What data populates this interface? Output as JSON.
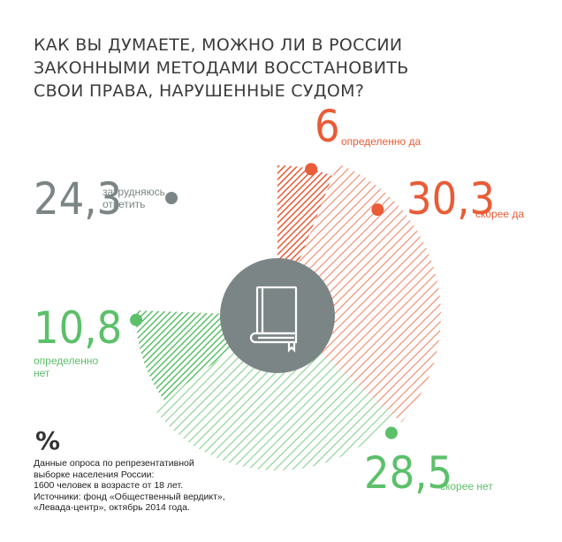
{
  "title_lines": [
    "КАК ВЫ ДУМАЕТЕ, МОЖНО ЛИ В РОССИИ",
    "ЗАКОННЫМИ МЕТОДАМИ ВОССТАНОВИТЬ",
    "СВОИ ПРАВА, НАРУШЕННЫЕ СУДОМ?"
  ],
  "labels": {
    "def_yes": {
      "value": "6",
      "text": "определенно да"
    },
    "likely_yes": {
      "value": "30,3",
      "text": "скорее да"
    },
    "hard": {
      "value": "24,3",
      "text_lines": [
        "затрудняюсь",
        "ответить"
      ]
    },
    "def_no": {
      "value": "10,8",
      "text_lines": [
        "определенно",
        "нет"
      ]
    },
    "likely_no": {
      "value": "28,5",
      "text": "скорее нет"
    }
  },
  "percent_sign": "%",
  "note_lines": [
    "Данные опроса по репрезентативной",
    "выборке населения России:",
    "1600 человек в возрасте от 18 лет.",
    "Источники: фонд «Общественный вердикт»,",
    "«Левада-центр», октябрь 2014 года."
  ],
  "colors": {
    "title": "#3b3b3b",
    "orange": "#e85c37",
    "orange_light": "#f0a28a",
    "green": "#5cc06a",
    "green_light": "#a8dca9",
    "gray": "#7b8585",
    "center": "#7b8585"
  },
  "icon": "book-icon",
  "chart_data": {
    "type": "pie",
    "categories": [
      "определенно да",
      "скорее да",
      "скорее нет",
      "определенно нет",
      "затрудняюсь ответить"
    ],
    "values": [
      6,
      30.3,
      28.5,
      10.8,
      24.3
    ],
    "unit": "%"
  }
}
